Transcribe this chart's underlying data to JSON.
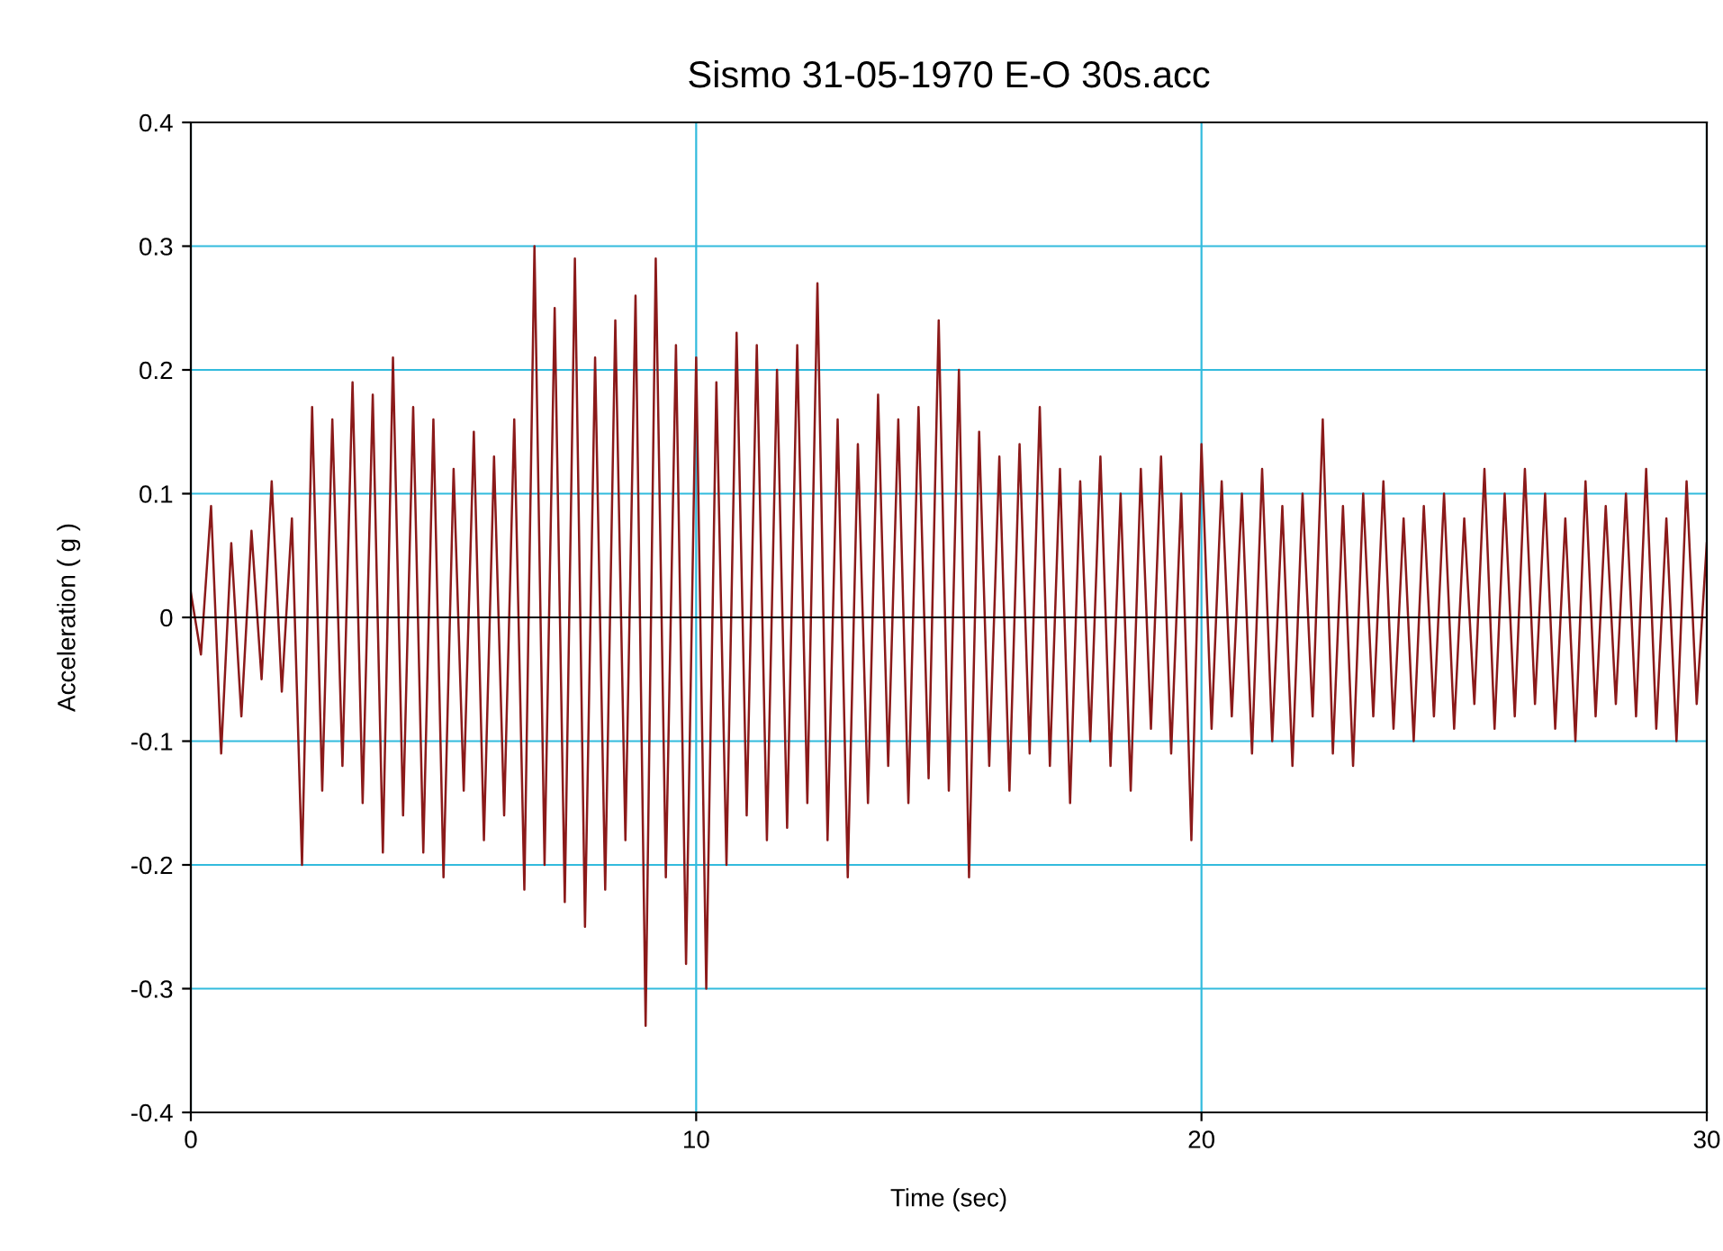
{
  "chart_data": {
    "type": "line",
    "title": "Sismo 31-05-1970 E-O 30s.acc",
    "xlabel": "Time (sec)",
    "ylabel": "Acceleration ( g )",
    "xlim": [
      0,
      30
    ],
    "xticks": [
      0,
      10,
      20,
      30
    ],
    "ylim": [
      -0.4,
      0.4
    ],
    "yticks": [
      -0.4,
      -0.3,
      -0.2,
      -0.1,
      0,
      0.1,
      0.2,
      0.3,
      0.4
    ],
    "grid": true,
    "marker": "none",
    "line_style": "solid",
    "ref_lines": [
      {
        "axis": "y",
        "value": 0,
        "color": "#000000"
      }
    ],
    "series": [
      {
        "color": "#8b1a1a",
        "x": [
          0,
          0.2,
          0.4,
          0.6,
          0.8,
          1.0,
          1.2,
          1.4,
          1.6,
          1.8,
          2.0,
          2.2,
          2.4,
          2.6,
          2.8,
          3.0,
          3.2,
          3.4,
          3.6,
          3.8,
          4.0,
          4.2,
          4.4,
          4.6,
          4.8,
          5.0,
          5.2,
          5.4,
          5.6,
          5.8,
          6.0,
          6.2,
          6.4,
          6.6,
          6.8,
          7.0,
          7.2,
          7.4,
          7.6,
          7.8,
          8.0,
          8.2,
          8.4,
          8.6,
          8.8,
          9.0,
          9.2,
          9.4,
          9.6,
          9.8,
          10.0,
          10.2,
          10.4,
          10.6,
          10.8,
          11.0,
          11.2,
          11.4,
          11.6,
          11.8,
          12.0,
          12.2,
          12.4,
          12.6,
          12.8,
          13.0,
          13.2,
          13.4,
          13.6,
          13.8,
          14.0,
          14.2,
          14.4,
          14.6,
          14.8,
          15.0,
          15.2,
          15.4,
          15.6,
          15.8,
          16.0,
          16.2,
          16.4,
          16.6,
          16.8,
          17.0,
          17.2,
          17.4,
          17.6,
          17.8,
          18.0,
          18.2,
          18.4,
          18.6,
          18.8,
          19.0,
          19.2,
          19.4,
          19.6,
          19.8,
          20.0,
          20.2,
          20.4,
          20.6,
          20.8,
          21.0,
          21.2,
          21.4,
          21.6,
          21.8,
          22.0,
          22.2,
          22.4,
          22.6,
          22.8,
          23.0,
          23.2,
          23.4,
          23.6,
          23.8,
          24.0,
          24.2,
          24.4,
          24.6,
          24.8,
          25.0,
          25.2,
          25.4,
          25.6,
          25.8,
          26.0,
          26.2,
          26.4,
          26.6,
          26.8,
          27.0,
          27.2,
          27.4,
          27.6,
          27.8,
          28.0,
          28.2,
          28.4,
          28.6,
          28.8,
          29.0,
          29.2,
          29.4,
          29.6,
          29.8,
          30.0
        ],
        "values": [
          0.02,
          -0.03,
          0.09,
          -0.11,
          0.06,
          -0.08,
          0.07,
          -0.05,
          0.11,
          -0.06,
          0.08,
          -0.2,
          0.17,
          -0.14,
          0.16,
          -0.12,
          0.19,
          -0.15,
          0.18,
          -0.19,
          0.21,
          -0.16,
          0.17,
          -0.19,
          0.16,
          -0.21,
          0.12,
          -0.14,
          0.15,
          -0.18,
          0.13,
          -0.16,
          0.16,
          -0.22,
          0.3,
          -0.2,
          0.25,
          -0.23,
          0.29,
          -0.25,
          0.21,
          -0.22,
          0.24,
          -0.18,
          0.26,
          -0.33,
          0.29,
          -0.21,
          0.22,
          -0.28,
          0.21,
          -0.3,
          0.19,
          -0.2,
          0.23,
          -0.16,
          0.22,
          -0.18,
          0.2,
          -0.17,
          0.22,
          -0.15,
          0.27,
          -0.18,
          0.16,
          -0.21,
          0.14,
          -0.15,
          0.18,
          -0.12,
          0.16,
          -0.15,
          0.17,
          -0.13,
          0.24,
          -0.14,
          0.2,
          -0.21,
          0.15,
          -0.12,
          0.13,
          -0.14,
          0.14,
          -0.11,
          0.17,
          -0.12,
          0.12,
          -0.15,
          0.11,
          -0.1,
          0.13,
          -0.12,
          0.1,
          -0.14,
          0.12,
          -0.09,
          0.13,
          -0.11,
          0.1,
          -0.18,
          0.14,
          -0.09,
          0.11,
          -0.08,
          0.1,
          -0.11,
          0.12,
          -0.1,
          0.09,
          -0.12,
          0.1,
          -0.08,
          0.16,
          -0.11,
          0.09,
          -0.12,
          0.1,
          -0.08,
          0.11,
          -0.09,
          0.08,
          -0.1,
          0.09,
          -0.08,
          0.1,
          -0.09,
          0.08,
          -0.07,
          0.12,
          -0.09,
          0.1,
          -0.08,
          0.12,
          -0.07,
          0.1,
          -0.09,
          0.08,
          -0.1,
          0.11,
          -0.08,
          0.09,
          -0.07,
          0.1,
          -0.08,
          0.12,
          -0.09,
          0.08,
          -0.1,
          0.11,
          -0.07,
          0.06
        ]
      }
    ]
  }
}
